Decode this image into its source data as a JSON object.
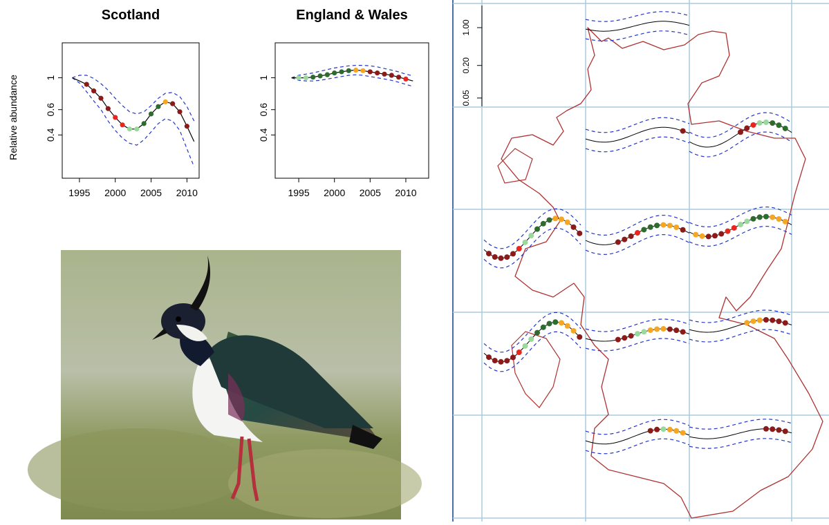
{
  "chart_data": [
    {
      "type": "line",
      "title": "Scotland",
      "y_label": "Relative abundance",
      "log_y": true,
      "x": [
        1994,
        1995,
        1996,
        1997,
        1998,
        1999,
        2000,
        2001,
        2002,
        2003,
        2004,
        2005,
        2006,
        2007,
        2008,
        2009,
        2010,
        2011
      ],
      "values": [
        1.0,
        0.95,
        0.9,
        0.81,
        0.72,
        0.61,
        0.53,
        0.47,
        0.44,
        0.44,
        0.48,
        0.56,
        0.63,
        0.68,
        0.66,
        0.58,
        0.46,
        0.36
      ],
      "upper": [
        1.0,
        1.04,
        1.04,
        0.99,
        0.91,
        0.82,
        0.72,
        0.64,
        0.58,
        0.56,
        0.58,
        0.64,
        0.72,
        0.78,
        0.79,
        0.74,
        0.63,
        0.5
      ],
      "lower": [
        1.0,
        0.92,
        0.8,
        0.69,
        0.6,
        0.5,
        0.43,
        0.38,
        0.35,
        0.34,
        0.37,
        0.42,
        0.48,
        0.52,
        0.5,
        0.43,
        0.32,
        0.24
      ],
      "point_colors": [
        null,
        null,
        "#8b1a1a",
        "#8b1a1a",
        "#8b1a1a",
        "#8b1a1a",
        "#e8261e",
        "#e8261e",
        "#9bd89b",
        "#9bd89b",
        "#2e6b2e",
        "#2e6b2e",
        "#2e6b2e",
        "#f5a623",
        "#8b1a1a",
        "#8b1a1a",
        "#8b1a1a",
        null
      ],
      "line_color": "#000000",
      "band_color": "#2233cc",
      "xlim": [
        1992.6,
        2011.7
      ],
      "xticks": [
        1995,
        2000,
        2005,
        2010
      ],
      "ylim": [
        0.2,
        1.75
      ],
      "yticks": [
        0.4,
        0.6,
        1.0
      ]
    },
    {
      "type": "line",
      "title": "England & Wales",
      "log_y": true,
      "x": [
        1994,
        1995,
        1996,
        1997,
        1998,
        1999,
        2000,
        2001,
        2002,
        2003,
        2004,
        2005,
        2006,
        2007,
        2008,
        2009,
        2010,
        2011
      ],
      "values": [
        1.0,
        1.0,
        1.0,
        1.01,
        1.03,
        1.05,
        1.08,
        1.1,
        1.12,
        1.13,
        1.12,
        1.1,
        1.08,
        1.06,
        1.04,
        1.01,
        0.98,
        0.95
      ],
      "upper": [
        1.0,
        1.04,
        1.06,
        1.08,
        1.11,
        1.14,
        1.17,
        1.19,
        1.21,
        1.22,
        1.22,
        1.21,
        1.19,
        1.16,
        1.13,
        1.1,
        1.06,
        1.03
      ],
      "lower": [
        1.0,
        0.96,
        0.95,
        0.95,
        0.96,
        0.98,
        1.0,
        1.02,
        1.04,
        1.05,
        1.04,
        1.02,
        1.0,
        0.98,
        0.96,
        0.93,
        0.9,
        0.87
      ],
      "point_colors": [
        null,
        "#9bd89b",
        "#9bd89b",
        "#2e6b2e",
        "#2e6b2e",
        "#2e6b2e",
        "#2e6b2e",
        "#2e6b2e",
        "#2e6b2e",
        "#f5a623",
        "#f5a623",
        "#8b1a1a",
        "#8b1a1a",
        "#8b1a1a",
        "#8b1a1a",
        "#8b1a1a",
        "#e8261e",
        null
      ],
      "line_color": "#000000",
      "band_color": "#2233cc",
      "xlim": [
        1991.7,
        2013.2
      ],
      "xticks": [
        1995,
        2000,
        2005,
        2010
      ],
      "ylim": [
        0.2,
        1.75
      ],
      "yticks": [
        0.4,
        0.6,
        1.0
      ]
    }
  ],
  "map": {
    "log_y": true,
    "ylim": [
      0.034,
      2.8
    ],
    "yticks": [
      {
        "value": 1,
        "label": "1.00"
      },
      {
        "value": 0.2,
        "label": "0.20"
      },
      {
        "value": 0.05,
        "label": "0.05"
      }
    ]
  }
}
